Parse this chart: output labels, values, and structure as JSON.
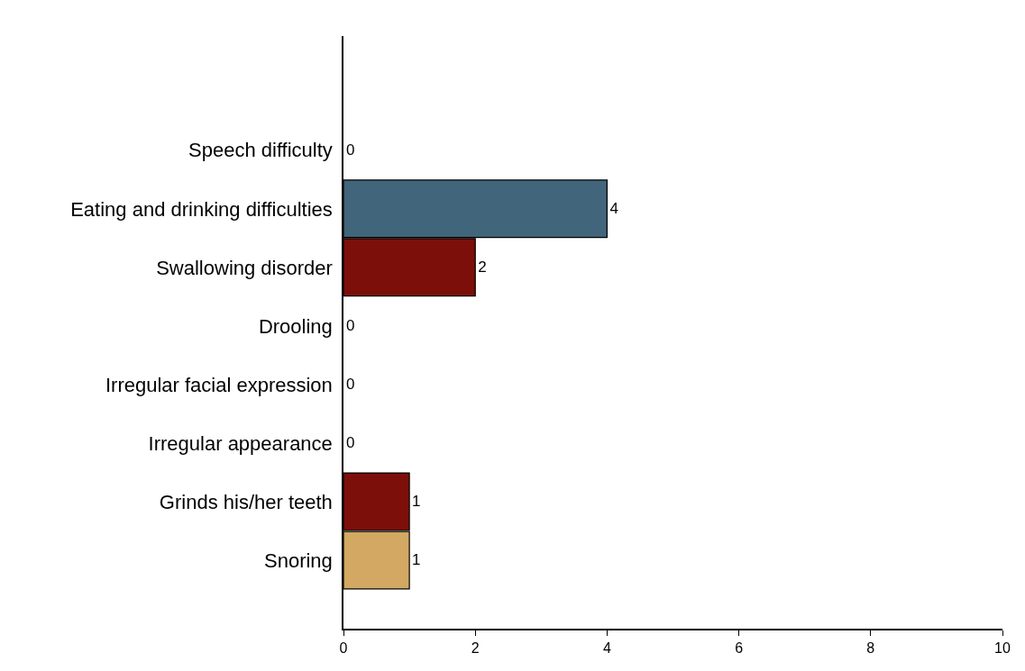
{
  "chart_data": {
    "type": "bar",
    "orientation": "horizontal",
    "categories": [
      "Speech difficulty",
      "Eating and drinking difficulties",
      "Swallowing disorder",
      "Drooling",
      "Irregular facial expression",
      "Irregular appearance",
      "Grinds his/her teeth",
      "Snoring"
    ],
    "values": [
      0,
      4,
      2,
      0,
      0,
      0,
      1,
      1
    ],
    "colors": [
      null,
      "#41657a",
      "#7d0f0a",
      null,
      null,
      null,
      "#7d0f0a",
      "#d2a862"
    ],
    "xlim": [
      0,
      10
    ],
    "xticks": [
      0,
      2,
      4,
      6,
      8,
      10
    ],
    "legend": false,
    "data_labels": true
  }
}
